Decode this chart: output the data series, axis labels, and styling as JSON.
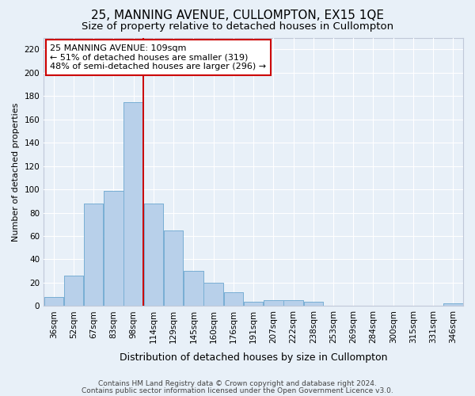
{
  "title": "25, MANNING AVENUE, CULLOMPTON, EX15 1QE",
  "subtitle": "Size of property relative to detached houses in Cullompton",
  "xlabel": "Distribution of detached houses by size in Cullompton",
  "ylabel": "Number of detached properties",
  "footnote1": "Contains HM Land Registry data © Crown copyright and database right 2024.",
  "footnote2": "Contains public sector information licensed under the Open Government Licence v3.0.",
  "bar_labels": [
    "36sqm",
    "52sqm",
    "67sqm",
    "83sqm",
    "98sqm",
    "114sqm",
    "129sqm",
    "145sqm",
    "160sqm",
    "176sqm",
    "191sqm",
    "207sqm",
    "222sqm",
    "238sqm",
    "253sqm",
    "269sqm",
    "284sqm",
    "300sqm",
    "315sqm",
    "331sqm",
    "346sqm"
  ],
  "bar_values": [
    8,
    26,
    88,
    99,
    175,
    88,
    65,
    30,
    20,
    12,
    4,
    5,
    5,
    4,
    0,
    0,
    0,
    0,
    0,
    0,
    2
  ],
  "bar_color": "#b8d0ea",
  "bar_edge_color": "#7aafd4",
  "vline_x": 4.5,
  "vline_color": "#cc0000",
  "annotation_line1": "25 MANNING AVENUE: 109sqm",
  "annotation_line2": "← 51% of detached houses are smaller (319)",
  "annotation_line3": "48% of semi-detached houses are larger (296) →",
  "annotation_box_color": "#ffffff",
  "annotation_box_edge_color": "#cc0000",
  "ylim": [
    0,
    230
  ],
  "yticks": [
    0,
    20,
    40,
    60,
    80,
    100,
    120,
    140,
    160,
    180,
    200,
    220
  ],
  "background_color": "#e8f0f8",
  "plot_background_color": "#e8f0f8",
  "grid_color": "#ffffff",
  "title_fontsize": 11,
  "subtitle_fontsize": 9.5,
  "xlabel_fontsize": 9,
  "ylabel_fontsize": 8,
  "tick_fontsize": 7.5,
  "annotation_fontsize": 8,
  "footnote_fontsize": 6.5
}
